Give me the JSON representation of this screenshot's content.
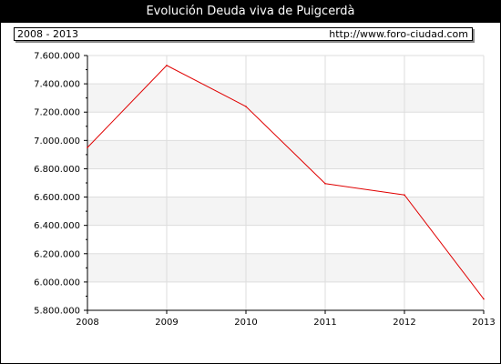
{
  "title": "Evolución Deuda viva de Puigcerdà",
  "period": "2008 - 2013",
  "source": "http://www.foro-ciudad.com",
  "colors": {
    "line": "#e00000",
    "band": "#f4f4f4",
    "grid": "#dddddd",
    "header": "#000000"
  },
  "chart_data": {
    "type": "line",
    "title": "Evolución Deuda viva de Puigcerdà",
    "x": [
      "2008",
      "2009",
      "2010",
      "2011",
      "2012",
      "2013"
    ],
    "series": [
      {
        "values": [
          6950000,
          7530000,
          7240000,
          6695000,
          6615000,
          5880000
        ]
      }
    ],
    "ylim": [
      5800000,
      7600000
    ],
    "yticks": [
      5800000,
      6000000,
      6200000,
      6400000,
      6600000,
      6800000,
      7000000,
      7200000,
      7400000,
      7600000
    ],
    "ytick_labels": [
      "5.800.000",
      "6.000.000",
      "6.200.000",
      "6.400.000",
      "6.600.000",
      "6.800.000",
      "7.000.000",
      "7.200.000",
      "7.400.000",
      "7.600.000"
    ],
    "xtick_labels": [
      "2008",
      "2009",
      "2010",
      "2011",
      "2012",
      "2013"
    ],
    "grid": true,
    "legend": "none"
  }
}
